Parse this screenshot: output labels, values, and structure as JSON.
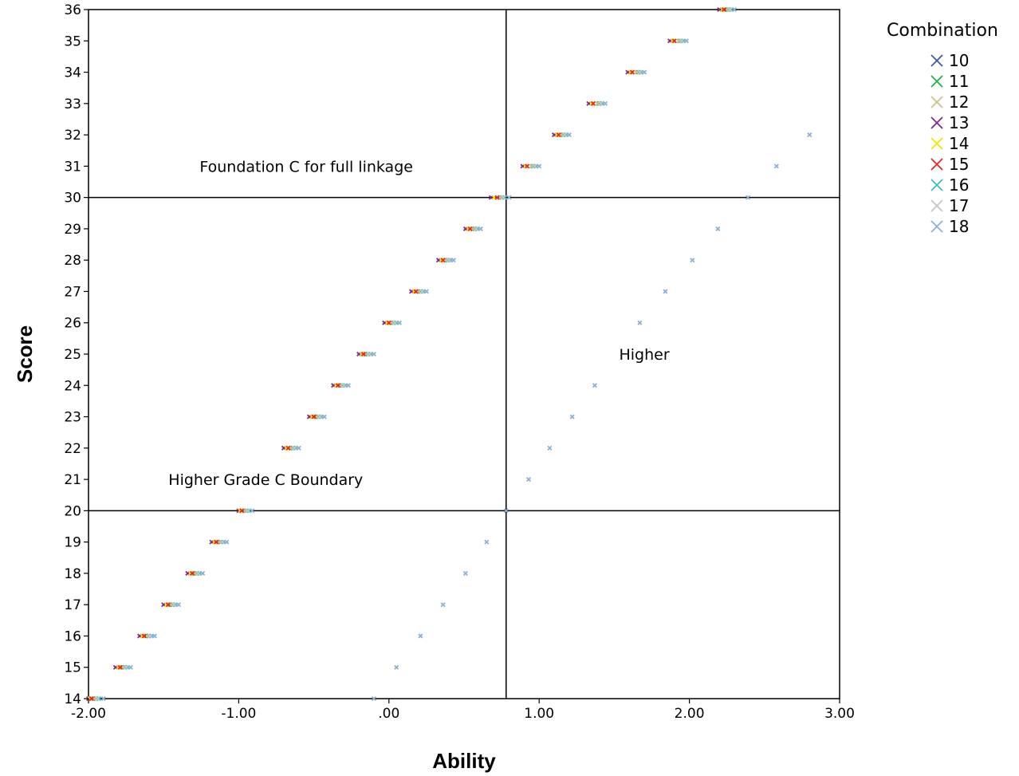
{
  "chart_data": {
    "type": "scatter",
    "xlabel": "Ability",
    "ylabel": "Score",
    "xlim": [
      -2.0,
      3.0
    ],
    "ylim": [
      14,
      36
    ],
    "x_ticks": [
      -2,
      -1,
      0,
      1,
      2,
      3
    ],
    "x_tick_labels": [
      "-2.00",
      "-1.00",
      ".00",
      "1.00",
      "2.00",
      "3.00"
    ],
    "y_ticks": [
      14,
      15,
      16,
      17,
      18,
      19,
      20,
      21,
      22,
      23,
      24,
      25,
      26,
      27,
      28,
      29,
      30,
      31,
      32,
      33,
      34,
      35,
      36
    ],
    "grid": false,
    "reference_lines": {
      "x": [
        0.78
      ],
      "y": [
        20,
        30
      ]
    },
    "annotations": [
      {
        "text": "Foundation C for full linkage",
        "x": -0.55,
        "y": 31
      },
      {
        "text": "Higher Grade C Boundary",
        "x": -0.82,
        "y": 21
      },
      {
        "text": "Higher",
        "x": 1.7,
        "y": 25
      }
    ],
    "legend": {
      "title": "Combination",
      "placement": "right"
    },
    "series": [
      {
        "name": "10",
        "color": "#3e58ac",
        "x": [
          -1.97,
          -1.78,
          -1.62,
          -1.46,
          -1.3,
          -1.14,
          -0.96,
          -0.65,
          -0.49,
          -0.33,
          -0.16,
          0.02,
          0.2,
          0.38,
          0.56,
          0.74,
          0.95,
          1.15,
          1.39,
          1.65,
          1.93,
          2.25
        ],
        "y": [
          14,
          15,
          16,
          17,
          18,
          19,
          20,
          22,
          23,
          24,
          25,
          26,
          27,
          28,
          29,
          30,
          31,
          32,
          33,
          34,
          35,
          36
        ]
      },
      {
        "name": "11",
        "color": "#21b14a",
        "x": [
          -1.95,
          -1.76,
          -1.6,
          -1.44,
          -1.28,
          -1.12,
          -0.95,
          -0.64,
          -0.47,
          -0.31,
          -0.14,
          0.03,
          0.21,
          0.39,
          0.57,
          0.75,
          0.96,
          1.16,
          1.4,
          1.66,
          1.94,
          2.26
        ],
        "y": [
          14,
          15,
          16,
          17,
          18,
          19,
          20,
          22,
          23,
          24,
          25,
          26,
          27,
          28,
          29,
          30,
          31,
          32,
          33,
          34,
          35,
          36
        ]
      },
      {
        "name": "12",
        "color": "#c8c48a",
        "x": [
          -1.96,
          -1.77,
          -1.61,
          -1.45,
          -1.29,
          -1.13,
          -0.96,
          -0.65,
          -0.48,
          -0.32,
          -0.15,
          0.02,
          0.2,
          0.38,
          0.56,
          0.74,
          0.95,
          1.15,
          1.39,
          1.65,
          1.93,
          2.25
        ],
        "y": [
          14,
          15,
          16,
          17,
          18,
          19,
          20,
          22,
          23,
          24,
          25,
          26,
          27,
          28,
          29,
          30,
          31,
          32,
          33,
          34,
          35,
          36
        ]
      },
      {
        "name": "13",
        "color": "#7b2b8d",
        "x": [
          -2.0,
          -1.82,
          -1.66,
          -1.5,
          -1.34,
          -1.18,
          -1.0,
          -0.7,
          -0.53,
          -0.37,
          -0.2,
          -0.03,
          0.15,
          0.33,
          0.51,
          0.68,
          0.89,
          1.1,
          1.33,
          1.59,
          1.87,
          2.2
        ],
        "y": [
          14,
          15,
          16,
          17,
          18,
          19,
          20,
          22,
          23,
          24,
          25,
          26,
          27,
          28,
          29,
          30,
          31,
          32,
          33,
          34,
          35,
          36
        ]
      },
      {
        "name": "14",
        "color": "#f2e500",
        "x": [
          -1.99,
          -1.8,
          -1.64,
          -1.48,
          -1.32,
          -1.16,
          -0.99,
          -0.68,
          -0.51,
          -0.35,
          -0.18,
          -0.01,
          0.17,
          0.35,
          0.53,
          0.7,
          0.91,
          1.12,
          1.35,
          1.61,
          1.89,
          2.22
        ],
        "y": [
          14,
          15,
          16,
          17,
          18,
          19,
          20,
          22,
          23,
          24,
          25,
          26,
          27,
          28,
          29,
          30,
          31,
          32,
          33,
          34,
          35,
          36
        ]
      },
      {
        "name": "15",
        "color": "#e8262a",
        "x": [
          -1.98,
          -1.79,
          -1.63,
          -1.47,
          -1.31,
          -1.15,
          -0.98,
          -0.67,
          -0.5,
          -0.34,
          -0.17,
          0.0,
          0.18,
          0.36,
          0.54,
          0.72,
          0.92,
          1.13,
          1.36,
          1.62,
          1.9,
          2.23
        ],
        "y": [
          14,
          15,
          16,
          17,
          18,
          19,
          20,
          22,
          23,
          24,
          25,
          26,
          27,
          28,
          29,
          30,
          31,
          32,
          33,
          34,
          35,
          36
        ]
      },
      {
        "name": "16",
        "color": "#3cbfbf",
        "x": [
          -1.93,
          -1.74,
          -1.58,
          -1.42,
          -1.26,
          -1.1,
          -0.93,
          -0.62,
          -0.45,
          -0.29,
          -0.12,
          0.05,
          0.23,
          0.41,
          0.59,
          0.77,
          0.98,
          1.18,
          1.42,
          1.68,
          1.96,
          2.28
        ],
        "y": [
          14,
          15,
          16,
          17,
          18,
          19,
          20,
          22,
          23,
          24,
          25,
          26,
          27,
          28,
          29,
          30,
          31,
          32,
          33,
          34,
          35,
          36
        ]
      },
      {
        "name": "17",
        "color": "#c6c6c6",
        "x": [
          -1.94,
          -1.75,
          -1.59,
          -1.43,
          -1.27,
          -1.11,
          -0.94,
          -0.63,
          -0.46,
          -0.3,
          -0.13,
          0.04,
          0.22,
          0.4,
          0.58,
          0.76,
          0.97,
          1.17,
          1.41,
          1.67,
          1.95,
          2.27
        ],
        "y": [
          14,
          15,
          16,
          17,
          18,
          19,
          20,
          22,
          23,
          24,
          25,
          26,
          27,
          28,
          29,
          30,
          31,
          32,
          33,
          34,
          35,
          36
        ]
      },
      {
        "name": "18",
        "color": "#8fb0d6",
        "x": [
          -1.9,
          -1.72,
          -1.56,
          -1.4,
          -1.24,
          -1.08,
          -0.91,
          -0.6,
          -0.43,
          -0.27,
          -0.1,
          0.07,
          0.25,
          0.43,
          0.61,
          0.8,
          1.0,
          1.2,
          1.44,
          1.7,
          1.98,
          2.3,
          -0.1,
          0.05,
          0.21,
          0.36,
          0.51,
          0.65,
          0.78,
          0.93,
          1.07,
          1.22,
          1.37,
          1.67,
          1.84,
          2.02,
          2.19,
          2.39,
          2.58,
          2.8
        ],
        "y": [
          14,
          15,
          16,
          17,
          18,
          19,
          20,
          22,
          23,
          24,
          25,
          26,
          27,
          28,
          29,
          30,
          31,
          32,
          33,
          34,
          35,
          36,
          14,
          15,
          16,
          17,
          18,
          19,
          20,
          21,
          22,
          23,
          24,
          26,
          27,
          28,
          29,
          30,
          31,
          32
        ]
      }
    ]
  }
}
